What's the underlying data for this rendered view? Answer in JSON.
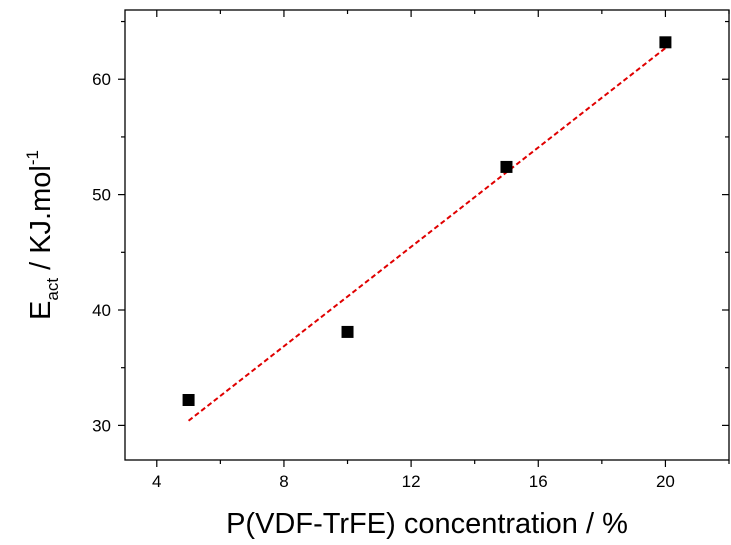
{
  "chart_data": {
    "type": "scatter",
    "title": "",
    "xlabel": "P(VDF-TrFE) concentration / %",
    "ylabel": {
      "base": "E",
      "subscript": "act",
      "unit": " / KJ.mol",
      "superscript": "-1"
    },
    "xlim": [
      3,
      22
    ],
    "ylim": [
      27,
      66
    ],
    "x_ticks": [
      4,
      8,
      12,
      16,
      20
    ],
    "y_ticks": [
      30,
      40,
      50,
      60
    ],
    "grid": false,
    "legend": "none",
    "series": [
      {
        "marker": "square",
        "color": "#000000",
        "points": [
          {
            "x": 5,
            "y": 32.2
          },
          {
            "x": 10,
            "y": 38.1
          },
          {
            "x": 15,
            "y": 52.4
          },
          {
            "x": 20,
            "y": 63.2
          }
        ]
      }
    ],
    "fit_line": {
      "style": "dashed",
      "color": "#e00000",
      "x": [
        5,
        20
      ],
      "y": [
        30.4,
        62.7
      ]
    }
  }
}
